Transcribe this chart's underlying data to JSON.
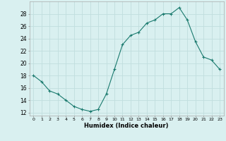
{
  "x": [
    0,
    1,
    2,
    3,
    4,
    5,
    6,
    7,
    8,
    9,
    10,
    11,
    12,
    13,
    14,
    15,
    16,
    17,
    18,
    19,
    20,
    21,
    22,
    23
  ],
  "y": [
    18,
    17,
    15.5,
    15,
    14,
    13,
    12.5,
    12.2,
    12.5,
    15,
    19,
    23,
    24.5,
    25,
    26.5,
    27,
    28,
    28,
    29,
    27,
    23.5,
    21,
    20.5,
    19
  ],
  "line_color": "#1a7a6e",
  "marker": "+",
  "bg_color": "#d9f0f0",
  "grid_color": "#c0dede",
  "xlabel": "Humidex (Indice chaleur)",
  "ylabel_ticks": [
    12,
    14,
    16,
    18,
    20,
    22,
    24,
    26,
    28
  ],
  "xlim": [
    -0.5,
    23.5
  ],
  "ylim": [
    11.5,
    30
  ],
  "xticks": [
    0,
    1,
    2,
    3,
    4,
    5,
    6,
    7,
    8,
    9,
    10,
    11,
    12,
    13,
    14,
    15,
    16,
    17,
    18,
    19,
    20,
    21,
    22,
    23
  ]
}
